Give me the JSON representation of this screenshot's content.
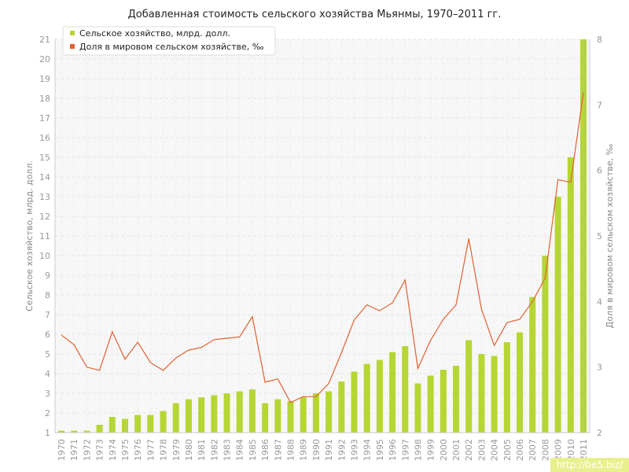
{
  "chart_data": {
    "type": "bar",
    "title": "Добавленная стоимость сельского хозяйства Мьянмы, 1970–2011 гг.",
    "ylabel": "Сельское хозяйство, млрд. долл.",
    "y2label": "Доля в мировом сельском хозяйстве, ‰",
    "ylim": [
      1,
      21
    ],
    "y2lim": [
      2,
      8
    ],
    "legend_position": "top-left",
    "grid": true,
    "categories": [
      "1970",
      "1971",
      "1972",
      "1973",
      "1974",
      "1975",
      "1976",
      "1977",
      "1978",
      "1979",
      "1980",
      "1981",
      "1982",
      "1983",
      "1984",
      "1985",
      "1986",
      "1987",
      "1988",
      "1989",
      "1990",
      "1991",
      "1992",
      "1993",
      "1994",
      "1995",
      "1996",
      "1997",
      "1998",
      "1999",
      "2000",
      "2001",
      "2002",
      "2003",
      "2004",
      "2005",
      "2006",
      "2007",
      "2008",
      "2009",
      "2010",
      "2011"
    ],
    "series": [
      {
        "name": "Сельское хозяйство, млрд. долл.",
        "type": "bar",
        "axis": "left",
        "color": "#b5d634",
        "values": [
          1.1,
          1.1,
          1.1,
          1.4,
          1.8,
          1.7,
          1.9,
          1.9,
          2.1,
          2.5,
          2.7,
          2.8,
          2.9,
          3.0,
          3.1,
          3.2,
          2.5,
          2.7,
          2.6,
          2.8,
          3.0,
          3.1,
          3.6,
          4.1,
          4.5,
          4.7,
          5.1,
          5.4,
          3.5,
          3.9,
          4.2,
          4.4,
          5.7,
          5.0,
          4.9,
          5.6,
          6.1,
          7.9,
          10.0,
          13.0,
          15.0,
          21.0
        ]
      },
      {
        "name": "Доля в мировом сельском хозяйстве, ‰",
        "type": "line",
        "axis": "right",
        "color": "#e06030",
        "values": [
          3.49,
          3.34,
          3.0,
          2.95,
          3.54,
          3.12,
          3.38,
          3.07,
          2.95,
          3.14,
          3.26,
          3.3,
          3.42,
          3.44,
          3.46,
          3.77,
          2.77,
          2.82,
          2.46,
          2.55,
          2.55,
          2.75,
          3.22,
          3.72,
          3.95,
          3.86,
          3.98,
          4.33,
          2.98,
          3.41,
          3.73,
          3.95,
          4.96,
          3.88,
          3.33,
          3.68,
          3.73,
          4.0,
          4.36,
          5.86,
          5.82,
          7.19
        ]
      }
    ]
  },
  "watermark": "http://be5.biz/"
}
